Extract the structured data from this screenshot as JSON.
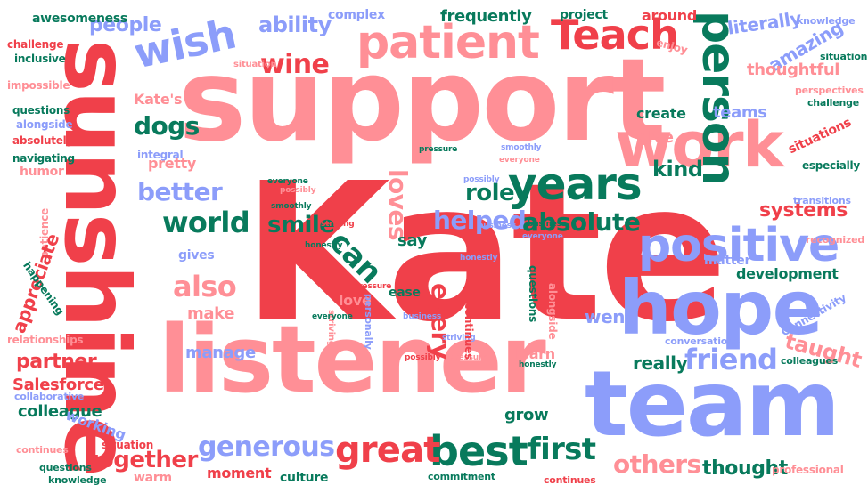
{
  "palette": {
    "red": "#f0404a",
    "pink": "#ff8f96",
    "blue": "#8c9dfa",
    "green": "#087a5c"
  },
  "words": {
    "kate": "Kate",
    "support": "support",
    "listener": "listener",
    "sunshine": "sunshine",
    "team": "team",
    "hope": "hope",
    "work": "work",
    "patient": "patient",
    "person": "person",
    "teach": "Teach",
    "positive": "positive",
    "years": "years",
    "wish": "wish",
    "best": "best",
    "great": "great",
    "generous": "generous",
    "world": "world",
    "friend": "friend",
    "also": "also",
    "together": "together",
    "first": "first",
    "wine": "wine",
    "dogs": "dogs",
    "can": "can",
    "better": "better",
    "helped": "helped",
    "absolute": "absolute",
    "appreciate": "appreciate",
    "others": "others",
    "taught": "taught",
    "thought": "thought",
    "systems": "systems",
    "kind": "kind",
    "loves": "loves",
    "smile": "smile",
    "role": "role",
    "every": "every",
    "partner": "partner",
    "colleague": "colleague",
    "salesforce": "Salesforce",
    "people": "people",
    "ability": "ability",
    "frequently": "frequently",
    "literally": "literally",
    "amazing": "amazing",
    "thoughtful": "thoughtful",
    "development": "development",
    "really": "really",
    "went": "went",
    "grow": "grow",
    "manage": "manage",
    "make": "make",
    "love": "love",
    "learn": "learn",
    "say": "say",
    "give": "give",
    "create": "create",
    "teams": "teams",
    "matter": "matter",
    "gives": "gives",
    "pretty": "pretty",
    "humor": "humor",
    "integral": "integral",
    "complex": "complex",
    "project": "project",
    "around": "around",
    "awesomeness": "awesomeness",
    "knowledge": "knowledge",
    "challenge": "challenge",
    "inclusive": "inclusive",
    "impossible": "impossible",
    "questions": "questions",
    "alongside": "alongside",
    "absolutely": "absolutely",
    "navigating": "navigating",
    "patience": "patience",
    "happening": "happening",
    "relationships": "relationships",
    "collaborative": "collaborative",
    "working": "working",
    "situation": "situation",
    "continues": "continues",
    "warm": "warm",
    "moment": "moment",
    "culture": "culture",
    "commitment": "commitment",
    "professional": "professional",
    "colleagues": "colleagues",
    "connectivity": "Connectivity",
    "conversations": "conversations",
    "recognized": "recognized",
    "transitions": "transitions",
    "especially": "especially",
    "situations": "situations",
    "perspectives": "perspectives",
    "enjoy": "enjoy",
    "kates": "Kate's",
    "ease": "ease",
    "personally": "personally",
    "everyone": "everyone",
    "smoothly": "smoothly",
    "striving": "striving",
    "honestly": "honestly",
    "pressure": "pressure",
    "business": "business",
    "possibly": "possibly"
  }
}
